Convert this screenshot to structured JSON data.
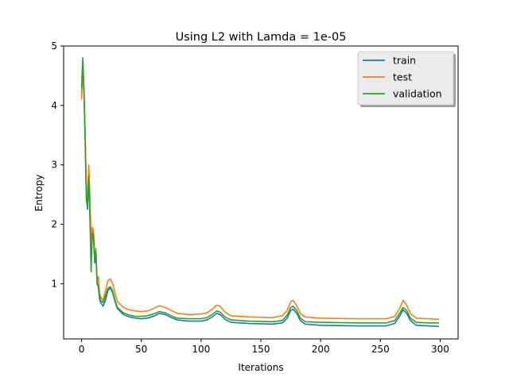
{
  "chart_data": {
    "type": "line",
    "title": "Using L2 with Lamda = 1e-05",
    "xlabel": "Iterations",
    "ylabel": "Entropy",
    "xlim": [
      -15,
      315
    ],
    "ylim": [
      0.07,
      5.0
    ],
    "xticks": [
      0,
      50,
      100,
      150,
      200,
      250,
      300
    ],
    "yticks": [
      1,
      2,
      3,
      4,
      5
    ],
    "grid": false,
    "legend_position": "top-right",
    "series": [
      {
        "name": "train",
        "color": "#1f77b4",
        "points": [
          [
            0,
            4.2
          ],
          [
            1,
            4.7
          ],
          [
            2,
            4.3
          ],
          [
            3,
            3.5
          ],
          [
            4,
            2.5
          ],
          [
            5,
            2.25
          ],
          [
            6,
            2.9
          ],
          [
            7,
            2.2
          ],
          [
            8,
            1.6
          ],
          [
            9,
            1.9
          ],
          [
            10,
            1.75
          ],
          [
            11,
            1.35
          ],
          [
            12,
            1.5
          ],
          [
            13,
            1.0
          ],
          [
            14,
            0.95
          ],
          [
            15,
            0.75
          ],
          [
            16,
            0.68
          ],
          [
            18,
            0.62
          ],
          [
            20,
            0.72
          ],
          [
            22,
            0.88
          ],
          [
            24,
            0.93
          ],
          [
            26,
            0.85
          ],
          [
            28,
            0.7
          ],
          [
            30,
            0.58
          ],
          [
            35,
            0.48
          ],
          [
            40,
            0.44
          ],
          [
            45,
            0.42
          ],
          [
            50,
            0.41
          ],
          [
            55,
            0.42
          ],
          [
            60,
            0.45
          ],
          [
            65,
            0.5
          ],
          [
            70,
            0.48
          ],
          [
            75,
            0.43
          ],
          [
            80,
            0.39
          ],
          [
            90,
            0.37
          ],
          [
            100,
            0.37
          ],
          [
            105,
            0.39
          ],
          [
            110,
            0.45
          ],
          [
            113,
            0.5
          ],
          [
            116,
            0.48
          ],
          [
            120,
            0.4
          ],
          [
            125,
            0.35
          ],
          [
            140,
            0.33
          ],
          [
            160,
            0.32
          ],
          [
            168,
            0.34
          ],
          [
            172,
            0.42
          ],
          [
            175,
            0.55
          ],
          [
            177,
            0.57
          ],
          [
            180,
            0.5
          ],
          [
            183,
            0.38
          ],
          [
            187,
            0.32
          ],
          [
            200,
            0.3
          ],
          [
            230,
            0.29
          ],
          [
            255,
            0.29
          ],
          [
            262,
            0.33
          ],
          [
            266,
            0.45
          ],
          [
            269,
            0.56
          ],
          [
            272,
            0.5
          ],
          [
            275,
            0.38
          ],
          [
            280,
            0.3
          ],
          [
            290,
            0.29
          ],
          [
            299,
            0.28
          ]
        ]
      },
      {
        "name": "test",
        "color": "#ff7f0e",
        "points": [
          [
            0,
            4.1
          ],
          [
            1,
            4.55
          ],
          [
            2,
            4.2
          ],
          [
            3,
            3.6
          ],
          [
            4,
            2.6
          ],
          [
            5,
            2.5
          ],
          [
            6,
            3.0
          ],
          [
            7,
            2.5
          ],
          [
            8,
            1.7
          ],
          [
            9,
            1.95
          ],
          [
            10,
            1.9
          ],
          [
            11,
            1.45
          ],
          [
            12,
            1.6
          ],
          [
            13,
            1.05
          ],
          [
            14,
            1.12
          ],
          [
            15,
            0.85
          ],
          [
            16,
            0.78
          ],
          [
            18,
            0.72
          ],
          [
            20,
            0.88
          ],
          [
            22,
            1.05
          ],
          [
            24,
            1.08
          ],
          [
            26,
            1.0
          ],
          [
            28,
            0.85
          ],
          [
            30,
            0.7
          ],
          [
            35,
            0.6
          ],
          [
            40,
            0.56
          ],
          [
            45,
            0.54
          ],
          [
            50,
            0.53
          ],
          [
            55,
            0.54
          ],
          [
            60,
            0.58
          ],
          [
            65,
            0.63
          ],
          [
            70,
            0.6
          ],
          [
            75,
            0.55
          ],
          [
            80,
            0.5
          ],
          [
            90,
            0.48
          ],
          [
            100,
            0.49
          ],
          [
            105,
            0.51
          ],
          [
            110,
            0.58
          ],
          [
            113,
            0.64
          ],
          [
            116,
            0.62
          ],
          [
            120,
            0.52
          ],
          [
            125,
            0.46
          ],
          [
            140,
            0.44
          ],
          [
            160,
            0.43
          ],
          [
            168,
            0.46
          ],
          [
            172,
            0.55
          ],
          [
            175,
            0.7
          ],
          [
            177,
            0.72
          ],
          [
            180,
            0.63
          ],
          [
            183,
            0.5
          ],
          [
            187,
            0.44
          ],
          [
            200,
            0.42
          ],
          [
            230,
            0.41
          ],
          [
            255,
            0.41
          ],
          [
            262,
            0.45
          ],
          [
            266,
            0.58
          ],
          [
            269,
            0.72
          ],
          [
            272,
            0.64
          ],
          [
            275,
            0.5
          ],
          [
            280,
            0.42
          ],
          [
            290,
            0.41
          ],
          [
            299,
            0.4
          ]
        ]
      },
      {
        "name": "validation",
        "color": "#2ca02c",
        "points": [
          [
            0,
            4.3
          ],
          [
            1,
            4.8
          ],
          [
            2,
            4.25
          ],
          [
            3,
            3.4
          ],
          [
            4,
            2.4
          ],
          [
            5,
            2.3
          ],
          [
            6,
            2.8
          ],
          [
            7,
            2.1
          ],
          [
            8,
            1.2
          ],
          [
            9,
            1.85
          ],
          [
            10,
            1.8
          ],
          [
            11,
            1.4
          ],
          [
            12,
            1.55
          ],
          [
            13,
            1.0
          ],
          [
            14,
            0.98
          ],
          [
            15,
            0.8
          ],
          [
            16,
            0.72
          ],
          [
            18,
            0.68
          ],
          [
            20,
            0.8
          ],
          [
            22,
            0.92
          ],
          [
            24,
            0.95
          ],
          [
            26,
            0.88
          ],
          [
            28,
            0.73
          ],
          [
            30,
            0.6
          ],
          [
            35,
            0.51
          ],
          [
            40,
            0.47
          ],
          [
            45,
            0.45
          ],
          [
            50,
            0.45
          ],
          [
            55,
            0.46
          ],
          [
            60,
            0.49
          ],
          [
            65,
            0.53
          ],
          [
            70,
            0.51
          ],
          [
            75,
            0.46
          ],
          [
            80,
            0.42
          ],
          [
            90,
            0.41
          ],
          [
            100,
            0.41
          ],
          [
            105,
            0.43
          ],
          [
            110,
            0.49
          ],
          [
            113,
            0.54
          ],
          [
            116,
            0.52
          ],
          [
            120,
            0.44
          ],
          [
            125,
            0.39
          ],
          [
            140,
            0.37
          ],
          [
            160,
            0.36
          ],
          [
            168,
            0.38
          ],
          [
            172,
            0.47
          ],
          [
            175,
            0.6
          ],
          [
            177,
            0.62
          ],
          [
            180,
            0.55
          ],
          [
            183,
            0.42
          ],
          [
            187,
            0.36
          ],
          [
            200,
            0.35
          ],
          [
            230,
            0.34
          ],
          [
            255,
            0.34
          ],
          [
            262,
            0.38
          ],
          [
            266,
            0.5
          ],
          [
            269,
            0.6
          ],
          [
            272,
            0.55
          ],
          [
            275,
            0.42
          ],
          [
            280,
            0.35
          ],
          [
            290,
            0.34
          ],
          [
            299,
            0.34
          ]
        ]
      }
    ]
  }
}
